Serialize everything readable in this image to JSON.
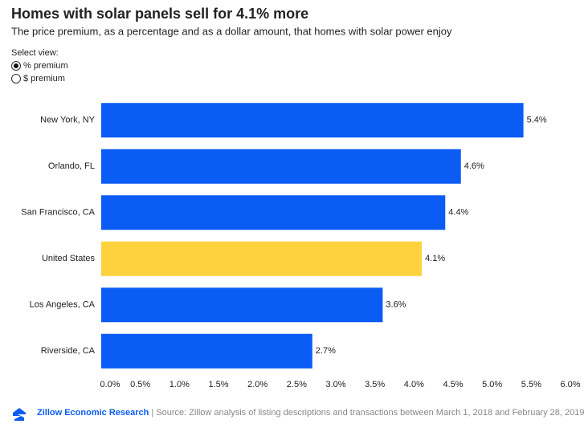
{
  "chart_data": {
    "type": "bar",
    "orientation": "horizontal",
    "title": "Homes with solar panels sell for 4.1% more",
    "subtitle": "The price premium, as a percentage and as a dollar amount, that homes with solar power enjoy",
    "control_label": "Select view:",
    "options": [
      "% premium",
      "$ premium"
    ],
    "selected_option": 0,
    "categories": [
      "New York, NY",
      "Orlando, FL",
      "San Francisco, CA",
      "United States",
      "Los Angeles, CA",
      "Riverside, CA"
    ],
    "values": [
      5.4,
      4.6,
      4.4,
      4.1,
      3.6,
      2.7
    ],
    "value_labels": [
      "5.4%",
      "4.6%",
      "4.4%",
      "4.1%",
      "3.6%",
      "2.7%"
    ],
    "colors": [
      "#0b5cf5",
      "#0b5cf5",
      "#0b5cf5",
      "#fed23c",
      "#0b5cf5",
      "#0b5cf5"
    ],
    "xlim": [
      0,
      6
    ],
    "xticks": [
      {
        "value": 0,
        "label": "0.0%"
      },
      {
        "value": 0.5,
        "label": "0.5%"
      },
      {
        "value": 1,
        "label": "1.0%"
      },
      {
        "value": 1.5,
        "label": "1.5%"
      },
      {
        "value": 2,
        "label": "2.0%"
      },
      {
        "value": 2.5,
        "label": "2.5%"
      },
      {
        "value": 3,
        "label": "3.0%"
      },
      {
        "value": 3.5,
        "label": "3.5%"
      },
      {
        "value": 4,
        "label": "4.0%"
      },
      {
        "value": 4.5,
        "label": "4.5%"
      },
      {
        "value": 5,
        "label": "5.0%"
      },
      {
        "value": 5.5,
        "label": "5.5%"
      },
      {
        "value": 6,
        "label": "6.0%"
      }
    ],
    "grid": false,
    "source_org": "Zillow Economic Research",
    "source": "| Source: Zillow analysis of listing descriptions and transactions between March 1, 2018 and February 28, 2019."
  }
}
